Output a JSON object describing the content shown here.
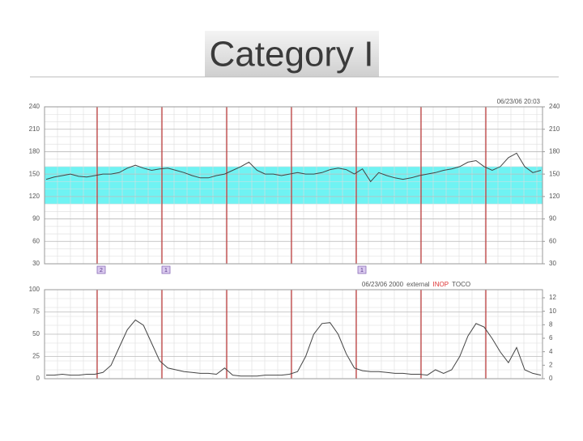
{
  "slide_title": "Category I",
  "chart_data": [
    {
      "type": "line",
      "annotation": "06/23/06 20:03",
      "ylim": [
        30,
        240
      ],
      "yticks": [
        30,
        60,
        90,
        120,
        150,
        180,
        210,
        240
      ],
      "y2lim": [
        30,
        240
      ],
      "y2ticks": [
        30,
        60,
        90,
        120,
        150,
        180,
        210,
        240
      ],
      "normal_band": [
        110,
        160
      ],
      "band_color": "#5ff2f2",
      "grid": true,
      "markers": [
        "2",
        "1",
        "1"
      ],
      "series": [
        {
          "color": "#444444",
          "values": [
            143,
            146,
            148,
            150,
            147,
            146,
            148,
            150,
            150,
            152,
            158,
            162,
            158,
            155,
            157,
            158,
            155,
            152,
            148,
            145,
            145,
            148,
            150,
            155,
            160,
            166,
            155,
            150,
            150,
            148,
            150,
            152,
            150,
            150,
            152,
            156,
            158,
            156,
            150,
            157,
            140,
            152,
            148,
            145,
            143,
            145,
            148,
            150,
            152,
            155,
            157,
            160,
            166,
            168,
            160,
            155,
            160,
            172,
            178,
            160,
            152,
            155
          ]
        }
      ]
    },
    {
      "type": "line",
      "annotation": [
        "06/23/06 2000",
        "external",
        "INOP",
        "TOCO"
      ],
      "ylim": [
        0,
        100
      ],
      "yticks": [
        0,
        25,
        50,
        75,
        100
      ],
      "y2lim": [
        0,
        13.2
      ],
      "y2ticks": [
        0,
        2,
        4,
        6,
        8,
        10,
        12
      ],
      "grid": true,
      "series": [
        {
          "color": "#444444",
          "values": [
            4,
            4,
            5,
            4,
            4,
            5,
            5,
            7,
            15,
            35,
            55,
            66,
            60,
            40,
            20,
            12,
            10,
            8,
            7,
            6,
            6,
            5,
            12,
            4,
            3,
            3,
            3,
            4,
            4,
            4,
            5,
            8,
            25,
            50,
            62,
            63,
            50,
            28,
            12,
            9,
            8,
            8,
            7,
            6,
            6,
            5,
            5,
            4,
            10,
            6,
            10,
            25,
            48,
            62,
            58,
            45,
            30,
            18,
            35,
            10,
            6,
            4
          ]
        }
      ]
    }
  ]
}
